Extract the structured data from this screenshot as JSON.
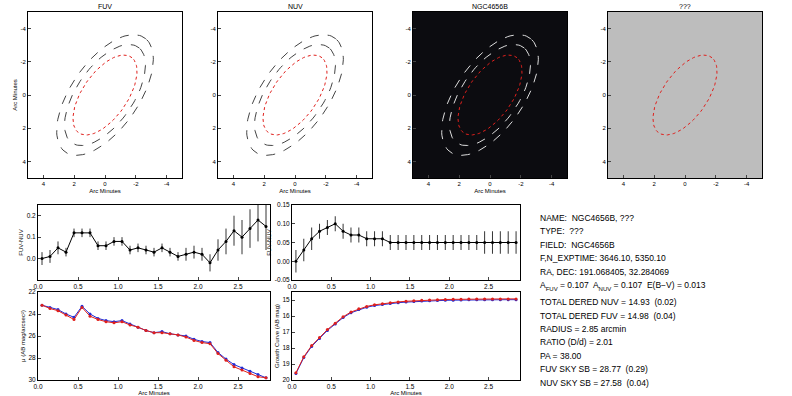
{
  "chart_data": [
    {
      "type": "image",
      "title": "FUV",
      "xlabel": "Arc Minutes",
      "ylabel": "Arc Minutes",
      "color": "#ffffff",
      "xlim": [
        5,
        -5
      ],
      "ylim": [
        5,
        -5
      ],
      "xticks": [
        4,
        2,
        0,
        -2,
        -4
      ],
      "yticks": [
        -4,
        -2,
        0,
        2,
        4
      ],
      "pa": 38,
      "ratio": 2.01,
      "apertures": [
        {
          "radius": 2.85,
          "color": "#e0201c",
          "line_style": "dot"
        },
        {
          "radius": 3.6,
          "color": "#444444",
          "line_style": "dash"
        },
        {
          "radius": 4.3,
          "color": "#444444",
          "line_style": "dash"
        }
      ]
    },
    {
      "type": "image",
      "title": "NUV",
      "xlabel": "Arc Minutes",
      "color": "#ffffff",
      "xlim": [
        5,
        -5
      ],
      "ylim": [
        5,
        -5
      ],
      "xticks": [
        4,
        2,
        0,
        -2,
        -4
      ],
      "yticks": [
        -4,
        -2,
        0,
        2,
        4
      ],
      "pa": 38,
      "ratio": 2.01,
      "apertures": [
        {
          "radius": 2.85,
          "color": "#e0201c",
          "line_style": "dot"
        },
        {
          "radius": 3.6,
          "color": "#444444",
          "line_style": "dash"
        },
        {
          "radius": 4.3,
          "color": "#444444",
          "line_style": "dash"
        }
      ]
    },
    {
      "type": "image",
      "title": "NGC4656B",
      "xlabel": "Arc Minutes",
      "color": "#0c0c10",
      "xlim": [
        5,
        -5
      ],
      "ylim": [
        5,
        -5
      ],
      "xticks": [
        4,
        2,
        0,
        -2,
        -4
      ],
      "yticks": [
        -4,
        -2,
        0,
        2,
        4
      ],
      "pa": 38,
      "ratio": 2.01,
      "apertures": [
        {
          "radius": 2.85,
          "color": "#e0201c",
          "line_style": "dot"
        },
        {
          "radius": 3.6,
          "color": "#dddddd",
          "line_style": "dash"
        },
        {
          "radius": 4.3,
          "color": "#dddddd",
          "line_style": "dash"
        }
      ]
    },
    {
      "type": "image",
      "title": "???",
      "color": "#bdbdbd",
      "xlim": [
        5,
        -5
      ],
      "ylim": [
        5,
        -5
      ],
      "xticks": [
        4,
        2,
        0,
        -2,
        -4
      ],
      "yticks": [
        -4,
        -2,
        0,
        2,
        4
      ],
      "pa": 38,
      "ratio": 2.01,
      "apertures": [
        {
          "radius": 2.85,
          "color": "#e0201c",
          "line_style": "dot"
        }
      ]
    },
    {
      "type": "line",
      "ylabel": "FUV-NUV",
      "xlim": [
        0,
        2.9
      ],
      "xticks": [
        {
          "value": 0,
          "label": "0.0"
        },
        0.5,
        {
          "value": 1,
          "label": "1.0"
        },
        1.5,
        {
          "value": 2,
          "label": "2.0"
        },
        2.5
      ],
      "ylim": [
        -0.1,
        0.25
      ],
      "yticks": [
        {
          "value": 0,
          "label": "0.0"
        },
        0.1,
        0.2
      ],
      "x": [
        0.05,
        0.15,
        0.25,
        0.35,
        0.45,
        0.55,
        0.65,
        0.75,
        0.85,
        0.95,
        1.05,
        1.15,
        1.25,
        1.35,
        1.45,
        1.55,
        1.65,
        1.75,
        1.85,
        1.95,
        2.05,
        2.15,
        2.25,
        2.35,
        2.45,
        2.55,
        2.65,
        2.75,
        2.85
      ],
      "series": [
        {
          "color": "#000000",
          "marker": "circle",
          "values": [
            0.0,
            0.01,
            0.05,
            0.03,
            0.12,
            0.12,
            0.12,
            0.06,
            0.06,
            0.08,
            0.08,
            0.04,
            0.05,
            0.04,
            0.03,
            0.05,
            0.03,
            0.01,
            0.02,
            0.03,
            0.02,
            -0.02,
            0.04,
            0.08,
            0.13,
            0.1,
            0.14,
            0.18,
            0.15
          ],
          "errors": [
            0.03,
            0.03,
            0.03,
            0.02,
            0.02,
            0.02,
            0.02,
            0.02,
            0.02,
            0.02,
            0.02,
            0.02,
            0.02,
            0.02,
            0.02,
            0.02,
            0.02,
            0.02,
            0.03,
            0.03,
            0.03,
            0.04,
            0.05,
            0.06,
            0.07,
            0.08,
            0.09,
            0.1,
            0.11
          ]
        }
      ]
    },
    {
      "type": "line",
      "ylabel": "FUV-NUV",
      "xlim": [
        0,
        2.9
      ],
      "xticks": [
        {
          "value": 0,
          "label": "0.0"
        },
        0.5,
        {
          "value": 1,
          "label": "1.0"
        },
        1.5,
        {
          "value": 2,
          "label": "2.0"
        },
        2.5
      ],
      "ylim": [
        -0.05,
        0.15
      ],
      "yticks": [
        {
          "value": -0.05,
          "label": "-0.05"
        },
        {
          "value": 0,
          "label": "0.00"
        },
        0.05,
        {
          "value": 0.1,
          "label": "0.10"
        },
        0.15
      ],
      "x": [
        0.05,
        0.15,
        0.25,
        0.35,
        0.45,
        0.55,
        0.65,
        0.75,
        0.85,
        0.95,
        1.05,
        1.15,
        1.25,
        1.35,
        1.45,
        1.55,
        1.65,
        1.75,
        1.85,
        1.95,
        2.05,
        2.15,
        2.25,
        2.35,
        2.45,
        2.55,
        2.65,
        2.75,
        2.85
      ],
      "series": [
        {
          "color": "#000000",
          "marker": "circle",
          "values": [
            0.0,
            0.03,
            0.06,
            0.08,
            0.09,
            0.1,
            0.08,
            0.07,
            0.07,
            0.06,
            0.06,
            0.06,
            0.05,
            0.05,
            0.05,
            0.05,
            0.05,
            0.05,
            0.05,
            0.05,
            0.05,
            0.05,
            0.05,
            0.05,
            0.05,
            0.05,
            0.05,
            0.05,
            0.05
          ],
          "errors": [
            0.03,
            0.03,
            0.03,
            0.02,
            0.02,
            0.02,
            0.02,
            0.02,
            0.02,
            0.02,
            0.02,
            0.02,
            0.02,
            0.02,
            0.02,
            0.02,
            0.02,
            0.02,
            0.02,
            0.02,
            0.02,
            0.02,
            0.02,
            0.02,
            0.03,
            0.03,
            0.03,
            0.03,
            0.03
          ]
        }
      ]
    },
    {
      "type": "line",
      "xlabel": "Arc Minutes",
      "ylabel": "μ (AB mag/arcsec²)",
      "xlim": [
        0,
        2.9
      ],
      "xticks": [
        {
          "value": 0,
          "label": "0.0"
        },
        0.5,
        {
          "value": 1,
          "label": "1.0"
        },
        1.5,
        {
          "value": 2,
          "label": "2.0"
        },
        2.5
      ],
      "ylim": [
        30,
        22
      ],
      "yticks": [
        22,
        24,
        26,
        28,
        30
      ],
      "x": [
        0.05,
        0.15,
        0.25,
        0.35,
        0.45,
        0.55,
        0.65,
        0.75,
        0.85,
        0.95,
        1.05,
        1.15,
        1.25,
        1.35,
        1.45,
        1.55,
        1.65,
        1.75,
        1.85,
        1.95,
        2.05,
        2.15,
        2.25,
        2.35,
        2.45,
        2.55,
        2.65,
        2.75,
        2.85
      ],
      "series": [
        {
          "color": "#1f2bd6",
          "marker": "circle",
          "values": [
            23.2,
            23.4,
            23.6,
            24.0,
            24.3,
            23.3,
            24.0,
            24.4,
            24.6,
            24.7,
            24.6,
            24.9,
            25.2,
            25.5,
            25.7,
            25.6,
            25.8,
            25.9,
            26.0,
            26.3,
            26.5,
            26.6,
            27.5,
            28.1,
            28.6,
            28.9,
            29.2,
            29.5,
            29.8
          ]
        },
        {
          "color": "#e0201c",
          "marker": "circle",
          "values": [
            23.2,
            23.5,
            23.7,
            24.1,
            24.5,
            23.4,
            24.2,
            24.5,
            24.7,
            24.8,
            24.7,
            25.0,
            25.2,
            25.5,
            25.7,
            25.7,
            25.8,
            25.9,
            26.1,
            26.4,
            26.6,
            26.7,
            27.6,
            28.2,
            28.8,
            29.1,
            29.4,
            29.7,
            29.8
          ]
        }
      ]
    },
    {
      "type": "line",
      "xlabel": "Arc Minutes",
      "ylabel": "Growth Curve (AB mag)",
      "xlim": [
        0,
        2.9
      ],
      "xticks": [
        {
          "value": 0,
          "label": "0.0"
        },
        0.5,
        {
          "value": 1,
          "label": "1.0"
        },
        1.5,
        {
          "value": 2,
          "label": "2.0"
        },
        2.5
      ],
      "ylim": [
        20,
        14.5
      ],
      "yticks": [
        15,
        16,
        17,
        18,
        19,
        20
      ],
      "x": [
        0.05,
        0.15,
        0.25,
        0.35,
        0.45,
        0.55,
        0.65,
        0.75,
        0.85,
        0.95,
        1.05,
        1.15,
        1.25,
        1.35,
        1.45,
        1.55,
        1.65,
        1.75,
        1.85,
        1.95,
        2.05,
        2.15,
        2.25,
        2.35,
        2.45,
        2.55,
        2.65,
        2.75,
        2.85
      ],
      "series": [
        {
          "color": "#1f2bd6",
          "marker": "circle",
          "values": [
            19.6,
            18.6,
            17.9,
            17.4,
            16.9,
            16.5,
            16.1,
            15.8,
            15.6,
            15.45,
            15.35,
            15.28,
            15.22,
            15.17,
            15.13,
            15.1,
            15.07,
            15.05,
            15.03,
            15.02,
            15.01,
            15.0,
            14.99,
            14.99,
            14.98,
            14.98,
            14.98,
            14.98,
            14.98
          ]
        },
        {
          "color": "#e0201c",
          "marker": "circle",
          "values": [
            19.55,
            18.55,
            17.85,
            17.35,
            16.85,
            16.45,
            16.05,
            15.75,
            15.55,
            15.4,
            15.3,
            15.23,
            15.17,
            15.12,
            15.08,
            15.05,
            15.02,
            15.0,
            14.98,
            14.97,
            14.96,
            14.95,
            14.94,
            14.94,
            14.93,
            14.93,
            14.93,
            14.93,
            14.93
          ]
        }
      ]
    }
  ],
  "info": {
    "lines": [
      "NAME:  NGC4656B, ???",
      "TYPE:  ???",
      "FIELD:  NGC4656B",
      "F,N_EXPTIME: 3646.10, 5350.10",
      "RA, DEC: 191.068405, 32.284069",
      [
        {
          "text": "A"
        },
        {
          "sub": "FUV"
        },
        {
          "text": " = 0.107  A"
        },
        {
          "sub": "NUV"
        },
        {
          "text": " = 0.107  E(B−V) = 0.013"
        }
      ],
      "TOTAL DERED NUV = 14.93  (0.02)",
      "TOTAL DERED FUV = 14.98  (0.04)",
      "RADIUS = 2.85 arcmin",
      "RATIO (D/d) = 2.01",
      "PA = 38.00",
      "FUV SKY SB = 28.77  (0.29)",
      "NUV SKY SB = 27.58  (0.04)"
    ]
  }
}
